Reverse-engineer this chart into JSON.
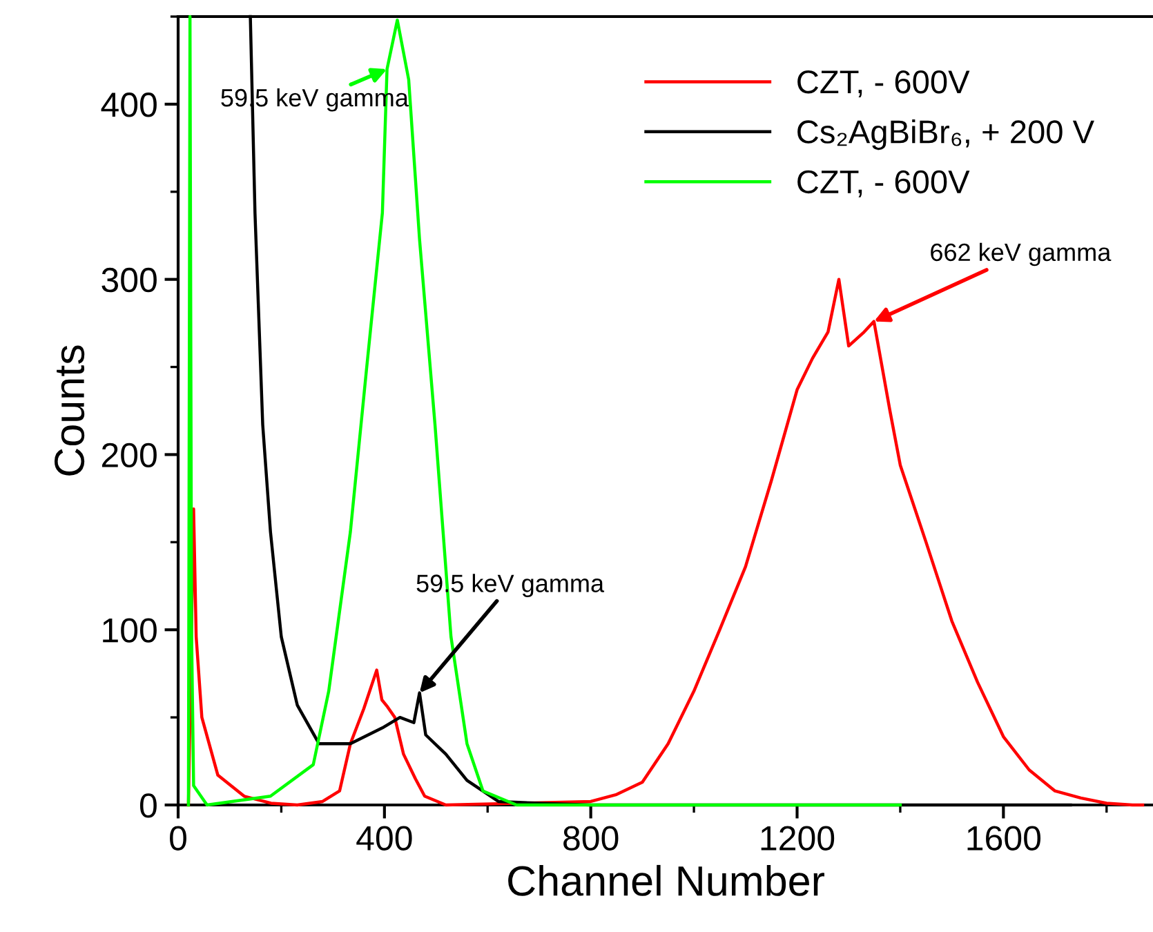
{
  "chart_data": {
    "type": "line",
    "xlabel": "Channel Number",
    "ylabel": "Counts",
    "xlim": [
      0,
      1890
    ],
    "ylim": [
      0,
      450
    ],
    "xticks": [
      0,
      400,
      800,
      1200,
      1600
    ],
    "yticks": [
      0,
      100,
      200,
      300,
      400
    ],
    "grid": false,
    "legend": "top right",
    "marker": "none",
    "line_style": "solid",
    "series": [
      {
        "name": "CZT, - 600V",
        "color": "#ff0000",
        "x": [
          20,
          30,
          35,
          46,
          77,
          128,
          180,
          231,
          280,
          313,
          334,
          360,
          385,
          395,
          406,
          420,
          437,
          460,
          478,
          519,
          800,
          850,
          900,
          950,
          1000,
          1050,
          1100,
          1150,
          1200,
          1230,
          1260,
          1281,
          1300,
          1330,
          1349,
          1380,
          1400,
          1450,
          1500,
          1550,
          1600,
          1650,
          1700,
          1750,
          1800,
          1850,
          1870
        ],
        "values": [
          0,
          169,
          96,
          50,
          17,
          5,
          1,
          0,
          2,
          8,
          35,
          55,
          77,
          60,
          56,
          50,
          29,
          15,
          5,
          0,
          2,
          6,
          13,
          35,
          65,
          100,
          136,
          185,
          237,
          255,
          270,
          300,
          262,
          270,
          276,
          225,
          194,
          150,
          105,
          70,
          39,
          20,
          8,
          4,
          1,
          0,
          0
        ]
      },
      {
        "name": "Cs₂AgBiBr₆, + 200 V",
        "color": "#000000",
        "x": [
          140,
          149,
          164,
          179,
          200,
          231,
          273,
          334,
          396,
          430,
          457,
          468,
          480,
          519,
          560,
          621,
          700,
          800,
          1000,
          1400,
          1730
        ],
        "values": [
          450,
          338,
          217,
          156,
          96,
          57,
          35,
          35,
          44,
          50,
          47,
          64,
          40,
          29,
          14,
          2,
          1,
          0,
          0,
          0,
          0
        ]
      },
      {
        "name": "CZT, - 600V",
        "color": "#00ff00",
        "x": [
          20,
          23,
          26,
          30,
          56,
          179,
          262,
          292,
          334,
          365,
          396,
          405,
          425,
          447,
          468,
          498,
          529,
          560,
          591,
          656,
          1000,
          1400
        ],
        "values": [
          0,
          450,
          100,
          11,
          0,
          5,
          23,
          65,
          156,
          248,
          338,
          420,
          448,
          414,
          323,
          217,
          96,
          35,
          8,
          0,
          0,
          0
        ]
      }
    ],
    "annotations": [
      {
        "text": "59.5 keV gamma",
        "x": 405,
        "y": 420
      },
      {
        "text": "59.5 keV gamma",
        "x": 468,
        "y": 64
      },
      {
        "text": "662 keV gamma",
        "x": 1349,
        "y": 276
      }
    ]
  }
}
